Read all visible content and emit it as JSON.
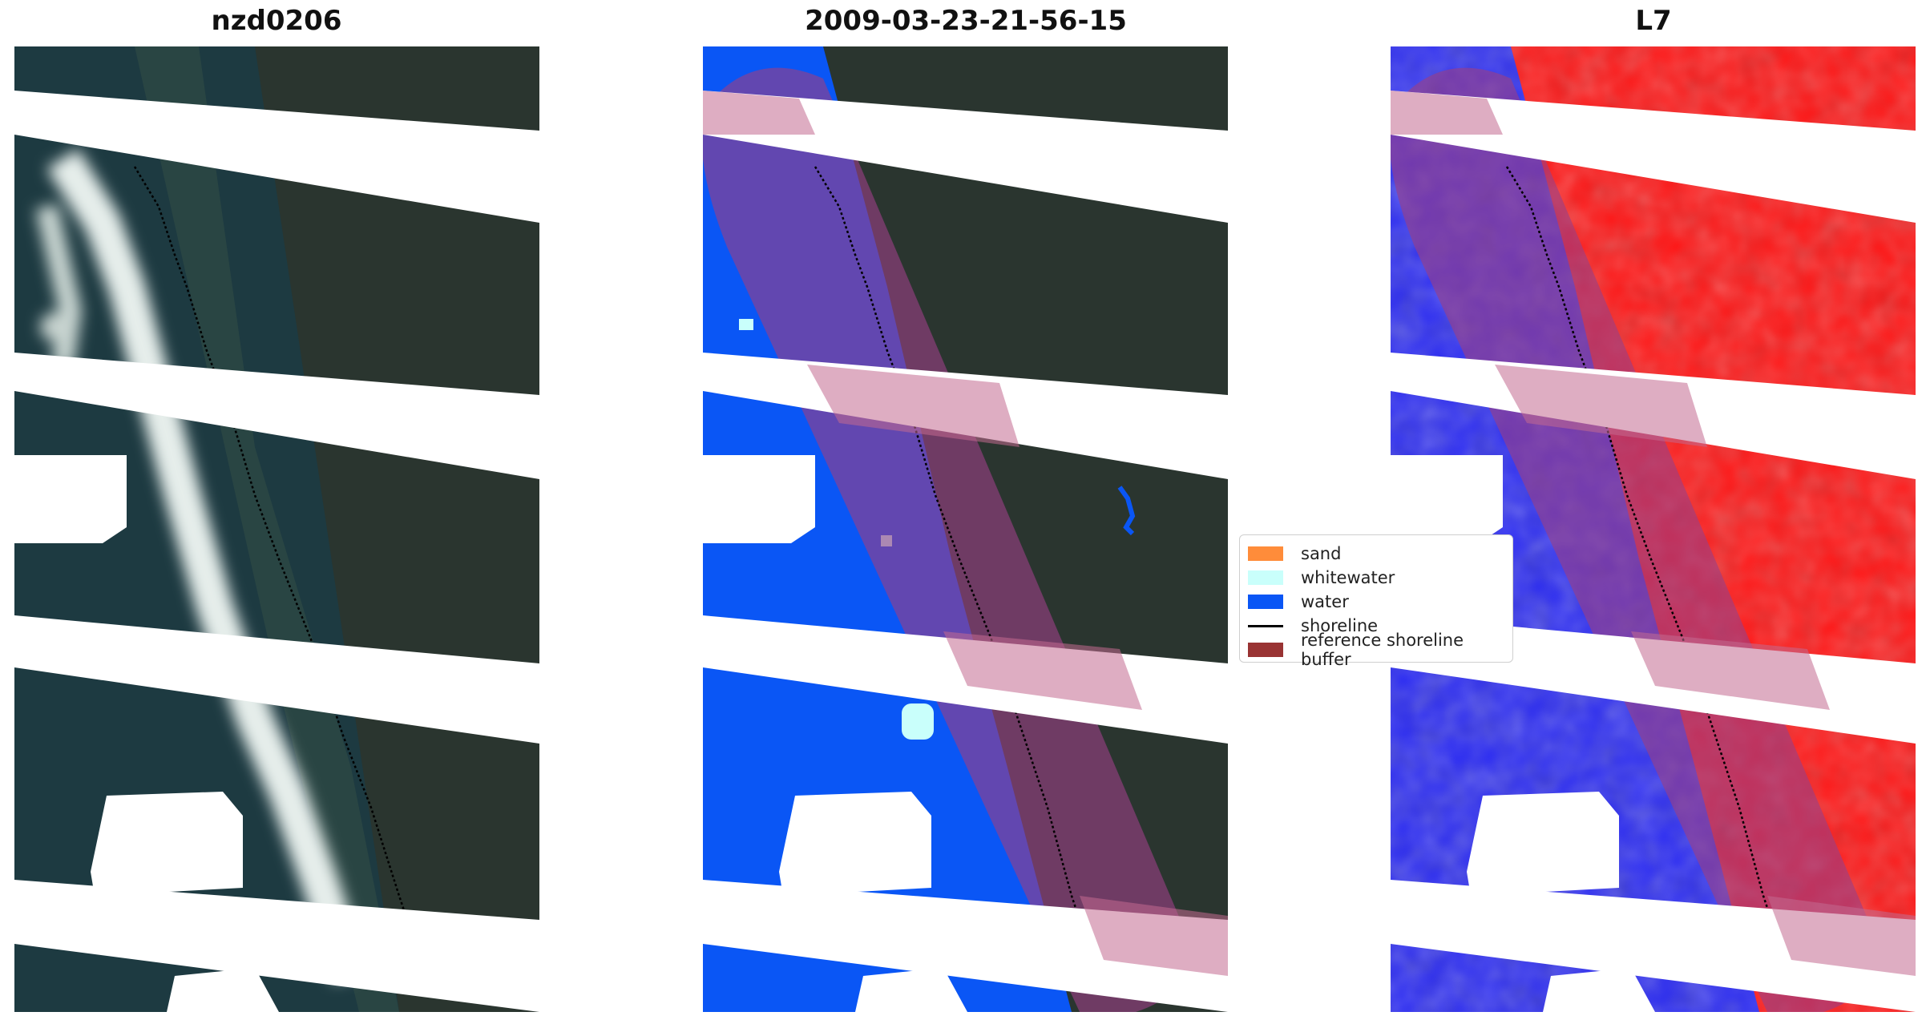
{
  "panels": [
    {
      "title": "nzd0206"
    },
    {
      "title": "2009-03-23-21-56-15"
    },
    {
      "title": "L7"
    }
  ],
  "legend": {
    "items": [
      {
        "label": "sand",
        "kind": "patch",
        "color": "#ff8c3a"
      },
      {
        "label": "whitewater",
        "kind": "patch",
        "color": "#c9fffb"
      },
      {
        "label": "water",
        "kind": "patch",
        "color": "#0a56f5"
      },
      {
        "label": "shoreline",
        "kind": "line",
        "color": "#000000"
      },
      {
        "label": "reference shoreline buffer",
        "kind": "patch",
        "color": "#993333"
      }
    ]
  },
  "colors": {
    "land_dark": "#27322c",
    "sea_dark": "#1b3a40",
    "surf_white": "#dfe8e4",
    "water_class": "#0a56f5",
    "buffer": "#b85c86",
    "ndwi_positive": "#ff1414",
    "ndwi_negative": "#2b2bf2"
  }
}
